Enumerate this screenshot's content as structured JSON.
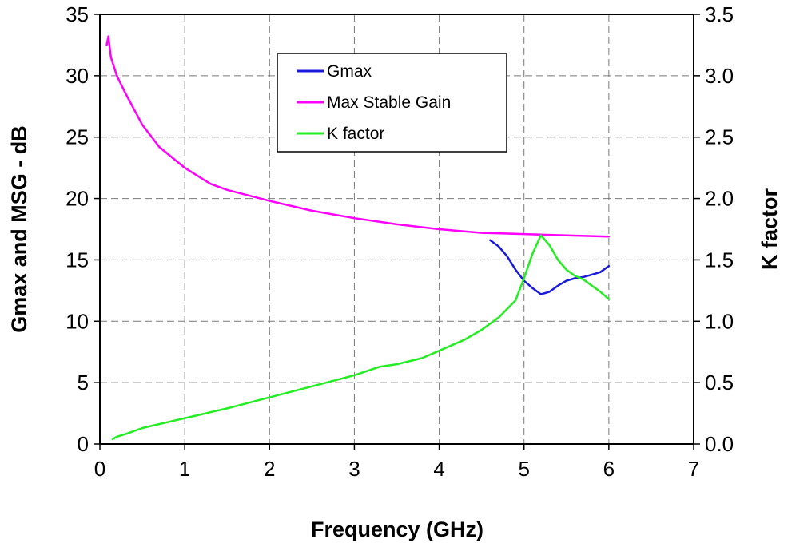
{
  "chart_data": {
    "type": "line",
    "title": "",
    "xlabel": "Frequency (GHz)",
    "ylabel_left": "Gmax and MSG - dB",
    "ylabel_right": "K factor",
    "xlim": [
      0,
      7
    ],
    "ylim_left": [
      0,
      35
    ],
    "ylim_right": [
      0,
      3.5
    ],
    "x_ticks": [
      "0",
      "1",
      "2",
      "3",
      "4",
      "5",
      "6",
      "7"
    ],
    "y_left_ticks": [
      "0",
      "5",
      "10",
      "15",
      "20",
      "25",
      "30",
      "35"
    ],
    "y_right_ticks": [
      "0.0",
      "0.5",
      "1.0",
      "1.5",
      "2.0",
      "2.5",
      "3.0",
      "3.5"
    ],
    "grid": true,
    "legend_position": "top-center",
    "series": [
      {
        "name": "Gmax",
        "axis": "left",
        "color": "#1a1adc",
        "x": [
          4.6,
          4.7,
          4.8,
          4.9,
          5.0,
          5.1,
          5.2,
          5.3,
          5.4,
          5.5,
          5.6,
          5.7,
          5.8,
          5.9,
          6.0
        ],
        "y": [
          16.6,
          16.1,
          15.3,
          14.2,
          13.3,
          12.7,
          12.2,
          12.4,
          12.9,
          13.3,
          13.5,
          13.6,
          13.8,
          14.0,
          14.5
        ]
      },
      {
        "name": "Max Stable Gain",
        "axis": "left",
        "color": "#ff00ff",
        "x": [
          0.08,
          0.1,
          0.13,
          0.2,
          0.3,
          0.5,
          0.7,
          1.0,
          1.3,
          1.5,
          2.0,
          2.5,
          3.0,
          3.5,
          4.0,
          4.5,
          5.0,
          5.5,
          6.0
        ],
        "y": [
          32.5,
          33.2,
          31.5,
          30.0,
          28.6,
          26.0,
          24.2,
          22.5,
          21.2,
          20.7,
          19.8,
          19.0,
          18.4,
          17.9,
          17.5,
          17.2,
          17.1,
          17.0,
          16.9
        ]
      },
      {
        "name": "K factor",
        "axis": "right",
        "color": "#22ee22",
        "x": [
          0.15,
          0.2,
          0.3,
          0.5,
          1.0,
          1.5,
          2.0,
          2.5,
          3.0,
          3.3,
          3.5,
          3.8,
          4.0,
          4.3,
          4.5,
          4.7,
          4.9,
          5.0,
          5.1,
          5.2,
          5.3,
          5.4,
          5.5,
          5.6,
          5.7,
          5.8,
          5.9,
          6.0
        ],
        "y": [
          0.04,
          0.06,
          0.08,
          0.13,
          0.21,
          0.29,
          0.38,
          0.47,
          0.56,
          0.63,
          0.65,
          0.7,
          0.76,
          0.85,
          0.93,
          1.03,
          1.17,
          1.35,
          1.55,
          1.7,
          1.62,
          1.5,
          1.42,
          1.37,
          1.34,
          1.29,
          1.24,
          1.18
        ]
      }
    ]
  }
}
